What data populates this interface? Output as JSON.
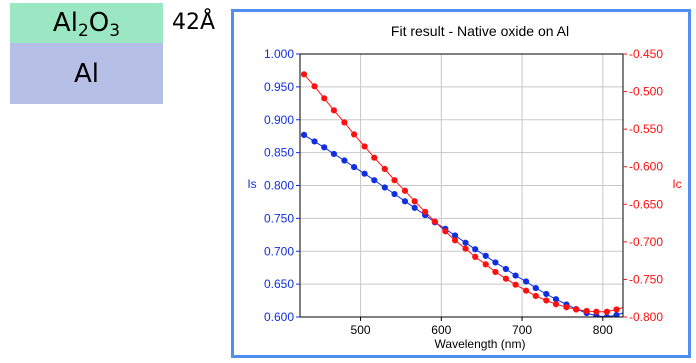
{
  "stack": {
    "top_layer": {
      "base1": "Al",
      "sub1": "2",
      "base2": "O",
      "sub2": "3"
    },
    "bottom_layer": "Al",
    "thickness": "42Å",
    "colors": {
      "top": "#9be7c4",
      "bottom": "#b6bfe6"
    }
  },
  "chart_data": {
    "type": "scatter",
    "title": "Fit result - Native oxide on Al",
    "xlabel": "Wavelength (nm)",
    "ylabel_left": "Is",
    "ylabel_right": "Ic",
    "xlim": [
      425,
      825
    ],
    "ylim_left": [
      0.6,
      1.0
    ],
    "ylim_right": [
      -0.8,
      -0.45
    ],
    "x_ticks": [
      "500",
      "600",
      "700",
      "800"
    ],
    "x_tick_values": [
      500,
      600,
      700,
      800
    ],
    "y_left_ticks": [
      "0.600",
      "0.650",
      "0.700",
      "0.750",
      "0.800",
      "0.850",
      "0.900",
      "0.950",
      "1.000"
    ],
    "y_right_ticks": [
      "-0.800",
      "-0.750",
      "-0.700",
      "-0.650",
      "-0.600",
      "-0.550",
      "-0.500",
      "-0.450"
    ],
    "grid": true,
    "series": [
      {
        "axis": "left",
        "color": "#1030e0",
        "x": [
          430,
          443,
          455,
          467,
          480,
          492,
          505,
          517,
          530,
          542,
          555,
          567,
          580,
          592,
          605,
          617,
          630,
          642,
          655,
          667,
          680,
          692,
          705,
          717,
          730,
          742,
          755,
          767,
          780,
          792,
          805,
          817,
          830
        ],
        "y": [
          0.877,
          0.867,
          0.858,
          0.848,
          0.838,
          0.828,
          0.818,
          0.808,
          0.797,
          0.787,
          0.776,
          0.766,
          0.755,
          0.744,
          0.734,
          0.724,
          0.713,
          0.703,
          0.693,
          0.683,
          0.673,
          0.663,
          0.654,
          0.644,
          0.635,
          0.627,
          0.619,
          0.612,
          0.606,
          0.602,
          0.6,
          0.603,
          0.608
        ]
      },
      {
        "axis": "right",
        "color": "#ff1010",
        "x": [
          430,
          443,
          455,
          467,
          480,
          492,
          505,
          517,
          530,
          542,
          555,
          567,
          580,
          592,
          605,
          617,
          630,
          642,
          655,
          667,
          680,
          692,
          705,
          717,
          730,
          742,
          755,
          767,
          780,
          792,
          805,
          817,
          830
        ],
        "y": [
          -0.477,
          -0.493,
          -0.509,
          -0.525,
          -0.541,
          -0.557,
          -0.573,
          -0.588,
          -0.603,
          -0.618,
          -0.632,
          -0.646,
          -0.66,
          -0.673,
          -0.686,
          -0.698,
          -0.709,
          -0.72,
          -0.73,
          -0.74,
          -0.749,
          -0.757,
          -0.765,
          -0.772,
          -0.778,
          -0.783,
          -0.787,
          -0.79,
          -0.792,
          -0.793,
          -0.793,
          -0.79,
          -0.786
        ]
      }
    ]
  }
}
